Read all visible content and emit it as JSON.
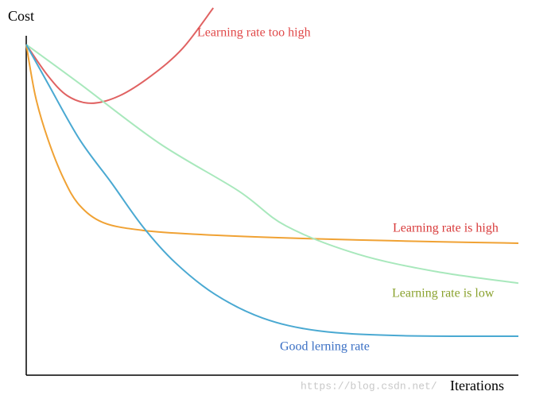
{
  "chart_data": {
    "type": "line",
    "x_label": "Iterations",
    "y_label": "Cost",
    "watermark": "https://blog.csdn.net/",
    "xlim": [
      0,
      100
    ],
    "ylim": [
      0,
      100
    ],
    "series": [
      {
        "name": "Learning rate too high",
        "color": "#e06262",
        "label_color": "#e04848",
        "x": [
          0,
          4.4,
          8.4,
          13.2,
          18.9,
          25.4,
          31.8,
          38
        ],
        "values": [
          90,
          81.5,
          76,
          74,
          76,
          81.5,
          89,
          100
        ]
      },
      {
        "name": "Learning rate is high",
        "color": "#f0a234",
        "label_color": "#d83a3a",
        "x": [
          0,
          1.9,
          4.4,
          7.6,
          10.8,
          15.7,
          23.7,
          35,
          51.2,
          67.4,
          83.5,
          100
        ],
        "values": [
          90,
          75.7,
          64.2,
          53.4,
          46.2,
          41.4,
          39.3,
          38.2,
          37.3,
          36.7,
          36.2,
          35.8
        ]
      },
      {
        "name": "Learning rate is low",
        "color": "#a8e8bc",
        "label_color": "#8aa22e",
        "x": [
          0,
          10.8,
          27,
          43.1,
          52.8,
          67.4,
          83.5,
          100
        ],
        "values": [
          90,
          79.4,
          63.1,
          50.1,
          40.5,
          32.8,
          28,
          24.9
        ]
      },
      {
        "name": "Good lerning rate",
        "color": "#4aa9d2",
        "label_color": "#3a6fc4",
        "x": [
          0,
          4.4,
          10.8,
          17.3,
          23.7,
          30.2,
          38.3,
          48,
          59.3,
          75.4,
          100
        ],
        "values": [
          90,
          79.4,
          64.2,
          52.3,
          40.3,
          30.6,
          21.9,
          15.4,
          11.9,
          10.6,
          10.4
        ]
      }
    ]
  }
}
